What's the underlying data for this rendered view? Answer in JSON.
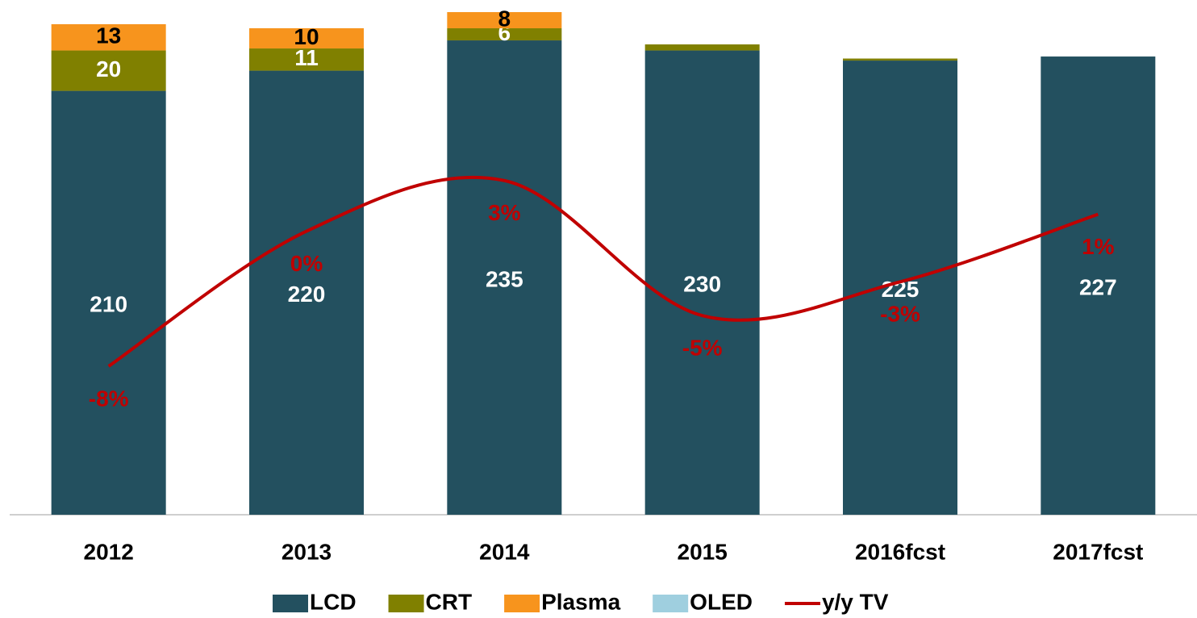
{
  "chart_data": {
    "type": "bar",
    "stacked": true,
    "categories": [
      "2012",
      "2013",
      "2014",
      "2015",
      "2016fcst",
      "2017fcst"
    ],
    "series": [
      {
        "name": "LCD",
        "color": "#23505f",
        "values": [
          210,
          220,
          235,
          230,
          225,
          227
        ]
      },
      {
        "name": "CRT",
        "color": "#808000",
        "values": [
          20,
          11,
          6,
          3,
          1,
          0
        ]
      },
      {
        "name": "Plasma",
        "color": "#f7941d",
        "values": [
          13,
          10,
          8,
          0,
          0,
          0
        ]
      },
      {
        "name": "OLED",
        "color": "#9fcfdf",
        "values": [
          0,
          0,
          0,
          0,
          0,
          0
        ]
      },
      {
        "name": "y/y TV",
        "type": "line",
        "axis": "y2",
        "color": "#c00000",
        "values": [
          -8,
          0,
          3,
          -5,
          -3,
          1
        ],
        "value_labels": [
          "-8%",
          "0%",
          "3%",
          "-5%",
          "-3%",
          "1%"
        ]
      }
    ],
    "ylim": [
      0,
      255
    ],
    "y2lim": [
      -16.8,
      13.7
    ],
    "legend": "bottom"
  }
}
